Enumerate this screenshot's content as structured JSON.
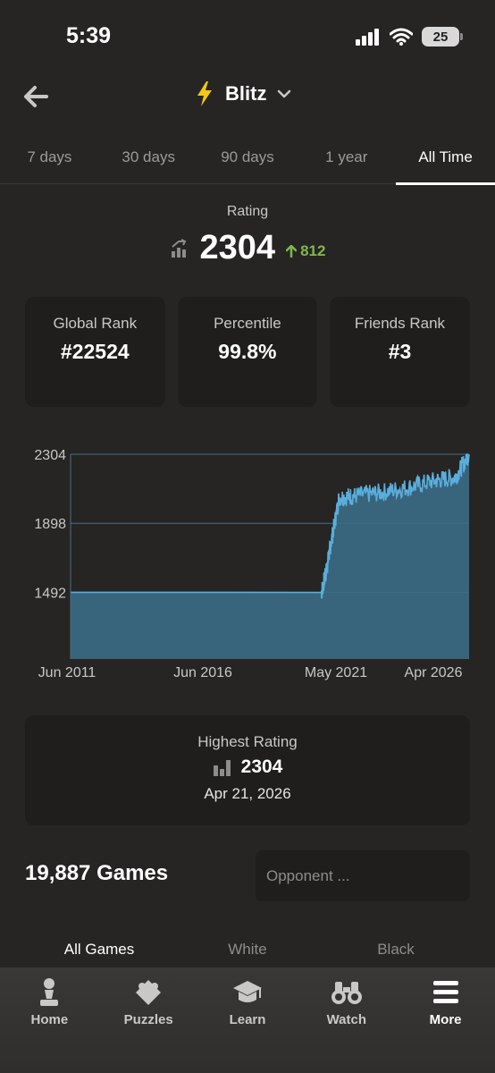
{
  "status_bar": {
    "time": "5:39",
    "battery": "25"
  },
  "header": {
    "title": "Blitz"
  },
  "tabs": [
    {
      "label": "7 days",
      "active": false
    },
    {
      "label": "30 days",
      "active": false
    },
    {
      "label": "90 days",
      "active": false
    },
    {
      "label": "1 year",
      "active": false
    },
    {
      "label": "All Time",
      "active": true
    }
  ],
  "rating": {
    "label": "Rating",
    "value": "2304",
    "change": "812"
  },
  "stats": [
    {
      "label": "Global Rank",
      "value": "#22524"
    },
    {
      "label": "Percentile",
      "value": "99.8%"
    },
    {
      "label": "Friends Rank",
      "value": "#3"
    }
  ],
  "chart_data": {
    "type": "area",
    "y_ticks": [
      "2304",
      "1898",
      "1492"
    ],
    "x_ticks": [
      "Jun 2011",
      "Jun 2016",
      "May 2021",
      "Apr 2026"
    ],
    "ylim": [
      1100,
      2304
    ],
    "x": [
      "2011-06",
      "2016-06",
      "2020-10",
      "2020-12",
      "2021-02",
      "2021-06",
      "2022-01",
      "2023-01",
      "2024-01",
      "2025-01",
      "2025-10",
      "2026-04"
    ],
    "values": [
      1492,
      1492,
      1492,
      1600,
      1760,
      2050,
      2060,
      2080,
      2110,
      2150,
      2170,
      2304
    ],
    "grid": true,
    "color": "#5aaedc"
  },
  "highest": {
    "label": "Highest Rating",
    "value": "2304",
    "date": "Apr 21, 2026"
  },
  "games": {
    "count_label": "19,887 Games",
    "search_placeholder": "Opponent ..."
  },
  "filter_tabs": [
    {
      "label": "All Games",
      "active": true
    },
    {
      "label": "White",
      "active": false
    },
    {
      "label": "Black",
      "active": false
    }
  ],
  "nav": [
    {
      "label": "Home",
      "icon": "pawn-icon",
      "active": false
    },
    {
      "label": "Puzzles",
      "icon": "puzzle-icon",
      "active": false
    },
    {
      "label": "Learn",
      "icon": "graduation-cap-icon",
      "active": false
    },
    {
      "label": "Watch",
      "icon": "binoculars-icon",
      "active": false
    },
    {
      "label": "More",
      "icon": "menu-icon",
      "active": true
    }
  ],
  "colors": {
    "accent_green": "#81b64c",
    "bolt_yellow": "#f5c518",
    "chart_line": "#5aaedc",
    "chart_fill": "#3b6d86"
  }
}
